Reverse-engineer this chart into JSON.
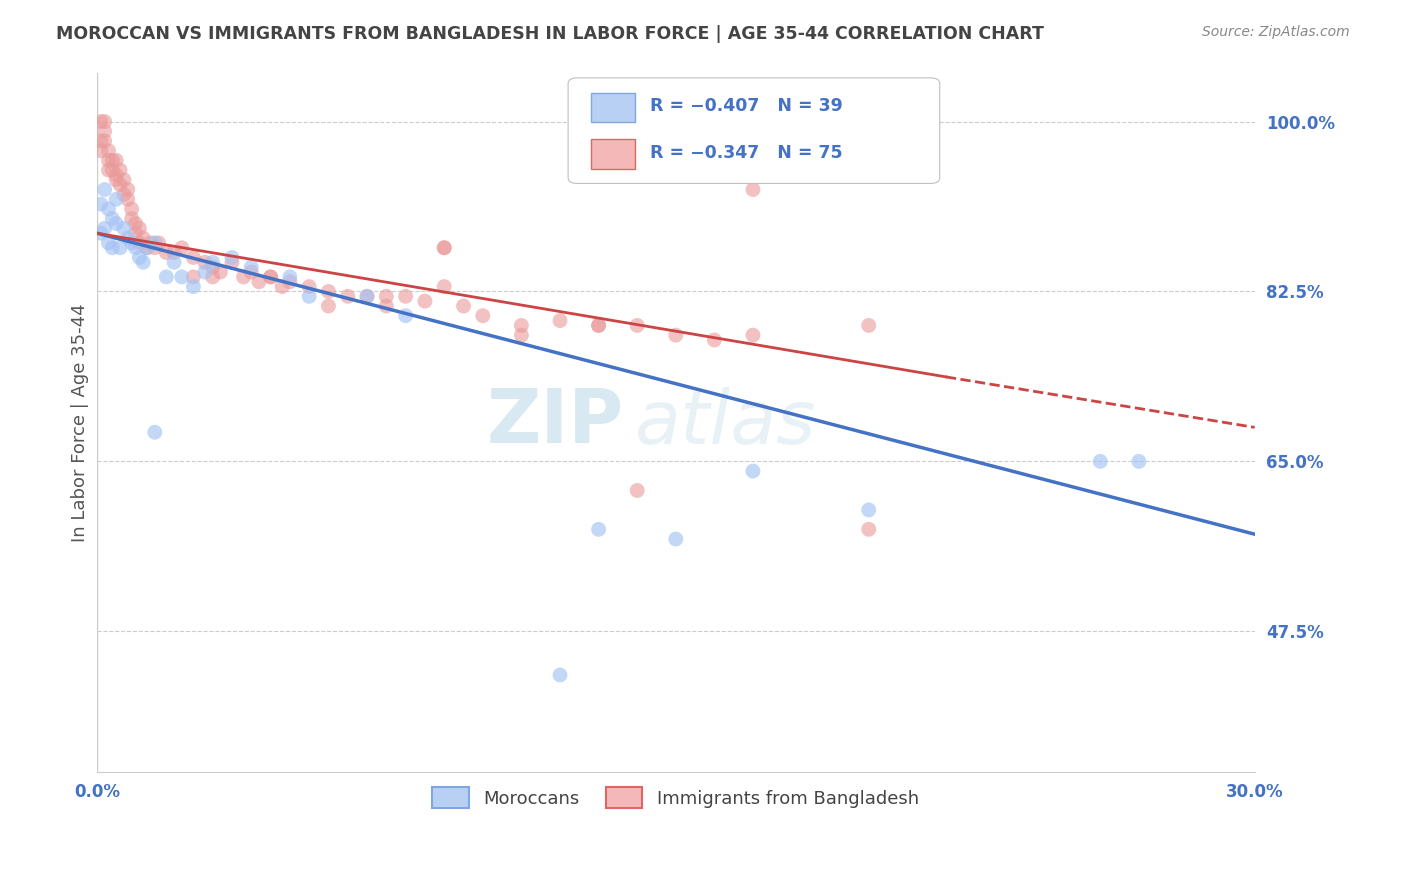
{
  "title": "MOROCCAN VS IMMIGRANTS FROM BANGLADESH IN LABOR FORCE | AGE 35-44 CORRELATION CHART",
  "source": "Source: ZipAtlas.com",
  "ylabel": "In Labor Force | Age 35-44",
  "xlim": [
    0.0,
    0.3
  ],
  "ylim": [
    0.33,
    1.05
  ],
  "xtick_left_label": "0.0%",
  "xtick_right_label": "30.0%",
  "yticks_right": [
    1.0,
    0.825,
    0.65,
    0.475
  ],
  "yticklabels_right": [
    "100.0%",
    "82.5%",
    "65.0%",
    "47.5%"
  ],
  "legend_label_moroccan": "Moroccans",
  "legend_label_bangladesh": "Immigrants from Bangladesh",
  "moroccan_color": "#a4c2f4",
  "bangladesh_color": "#ea9999",
  "regression_moroccan_color": "#4472c4",
  "regression_bangladesh_color": "#cc4444",
  "background_color": "#ffffff",
  "grid_color": "#cccccc",
  "title_color": "#444444",
  "axis_label_color": "#4472c4"
}
